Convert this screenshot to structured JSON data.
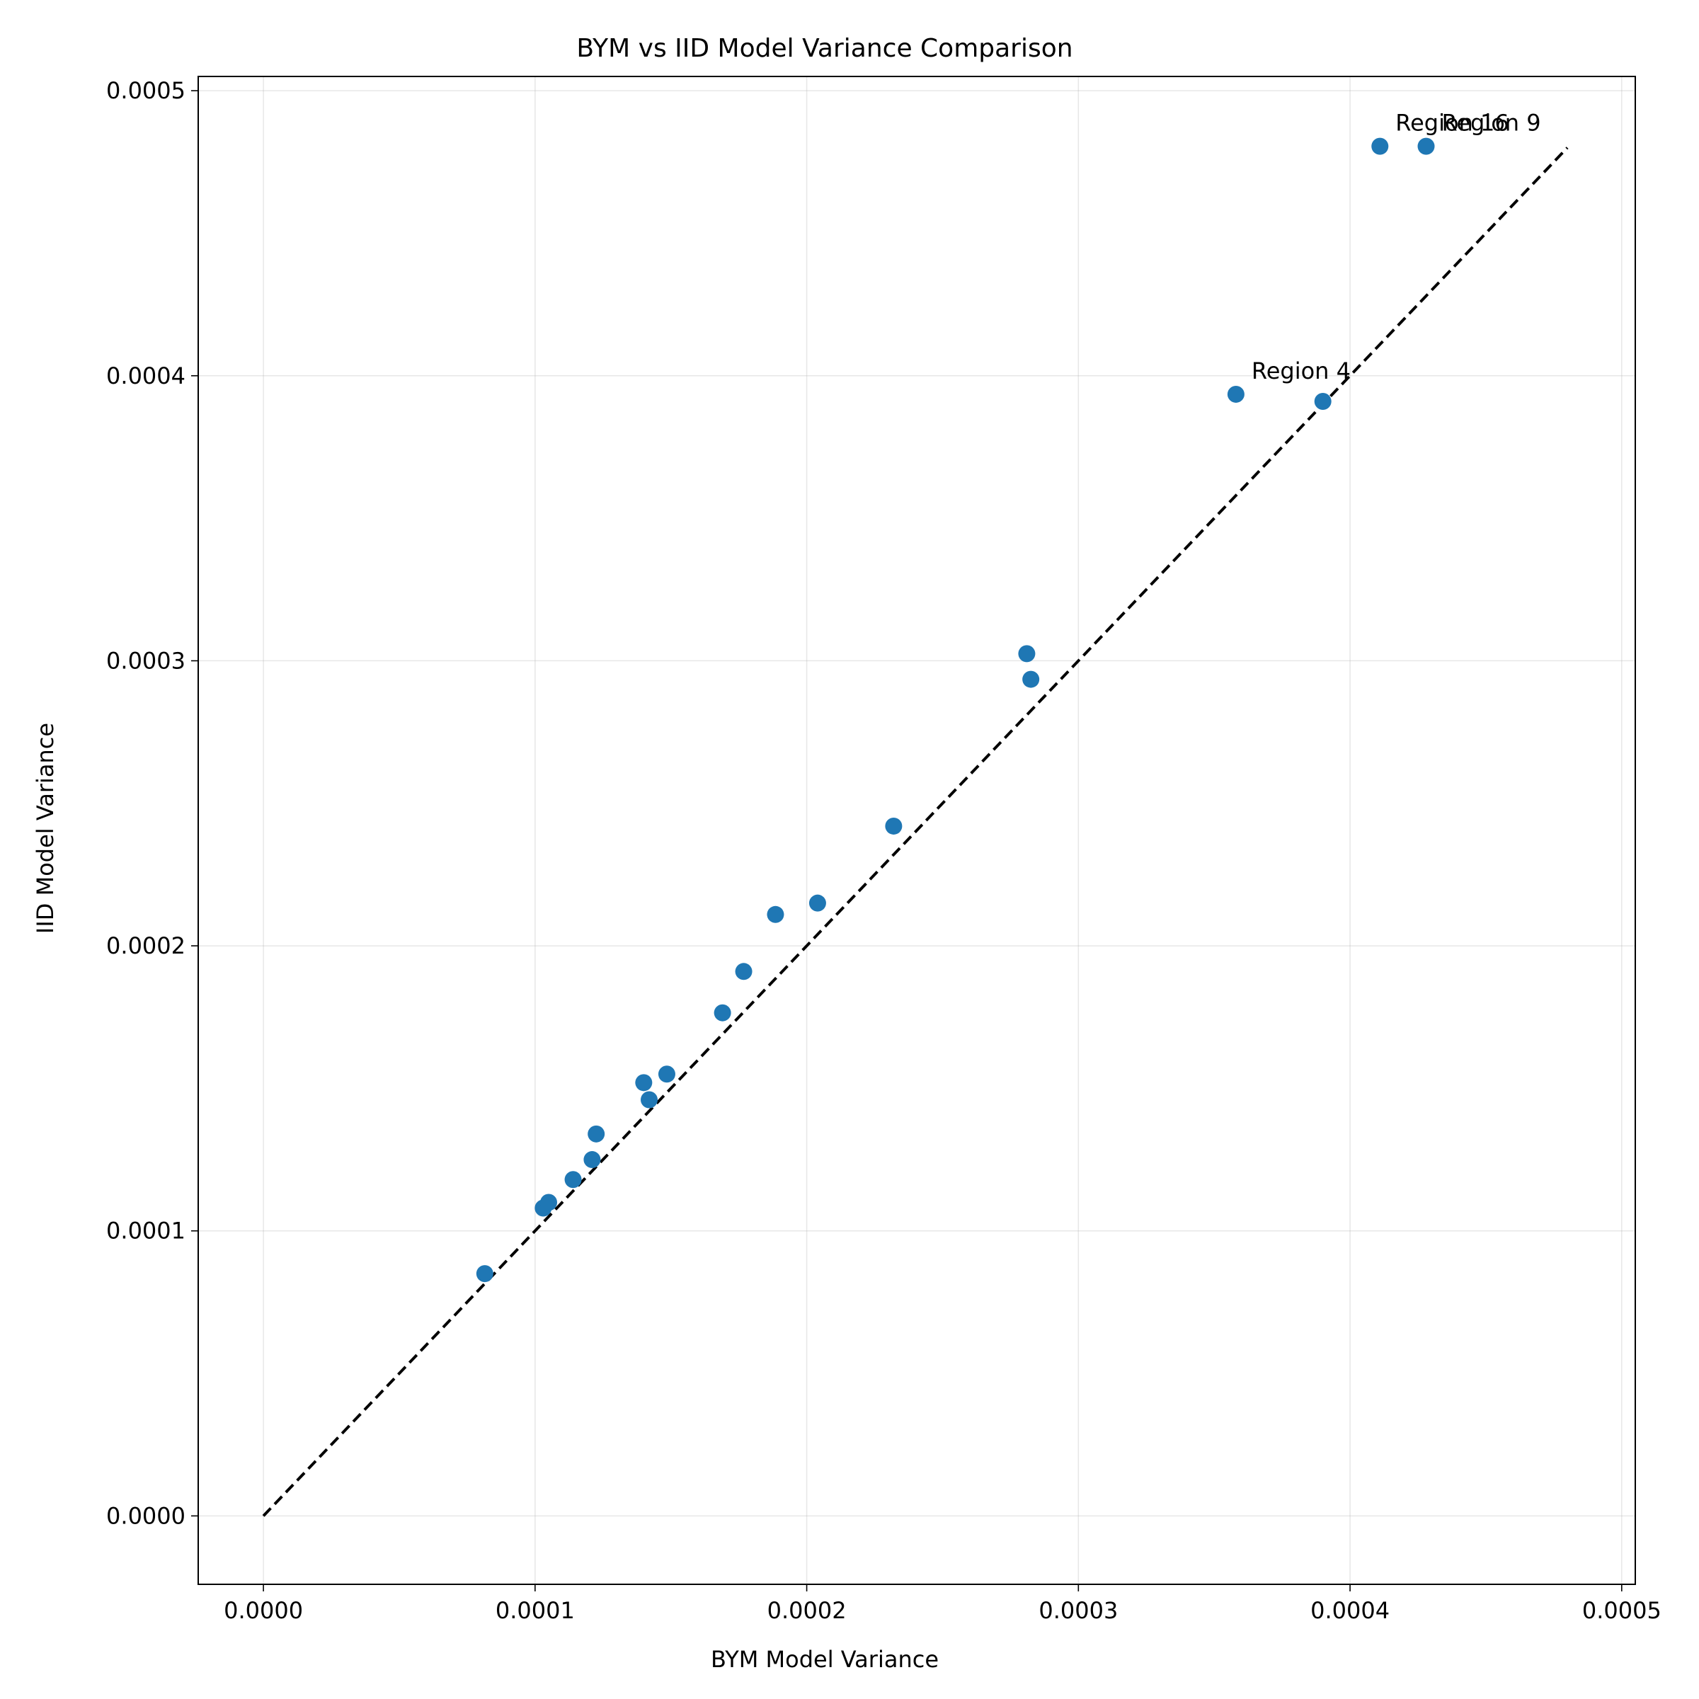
{
  "chart_data": {
    "type": "scatter",
    "title": "BYM vs IID Model Variance Comparison",
    "xlabel": "BYM Model Variance",
    "ylabel": "IID Model Variance",
    "xlim": [
      -2.4e-05,
      0.000505
    ],
    "ylim": [
      -2.4e-05,
      0.000505
    ],
    "x_ticks": [
      0.0,
      0.0001,
      0.0002,
      0.0003,
      0.0004,
      0.0005
    ],
    "x_tick_labels": [
      "0.0000",
      "0.0001",
      "0.0002",
      "0.0003",
      "0.0004",
      "0.0005"
    ],
    "y_ticks": [
      0.0,
      0.0001,
      0.0002,
      0.0003,
      0.0004,
      0.0005
    ],
    "y_tick_labels": [
      "0.0000",
      "0.0001",
      "0.0002",
      "0.0003",
      "0.0004",
      "0.0005"
    ],
    "grid": true,
    "marker_color": "#1f77b4",
    "series": [
      {
        "points": [
          {
            "x": 8.15e-05,
            "y": 8.5e-05
          },
          {
            "x": 0.000103,
            "y": 0.000108
          },
          {
            "x": 0.000105,
            "y": 0.00011
          },
          {
            "x": 0.000114,
            "y": 0.000118
          },
          {
            "x": 0.000121,
            "y": 0.000125
          },
          {
            "x": 0.0001225,
            "y": 0.000134
          },
          {
            "x": 0.00014,
            "y": 0.000152
          },
          {
            "x": 0.000142,
            "y": 0.000146
          },
          {
            "x": 0.0001485,
            "y": 0.000155
          },
          {
            "x": 0.000169,
            "y": 0.0001765
          },
          {
            "x": 0.0001768,
            "y": 0.000191
          },
          {
            "x": 0.0001885,
            "y": 0.000211
          },
          {
            "x": 0.000204,
            "y": 0.000215
          },
          {
            "x": 0.000232,
            "y": 0.000242
          },
          {
            "x": 0.000281,
            "y": 0.0003025
          },
          {
            "x": 0.0002825,
            "y": 0.0002935
          },
          {
            "x": 0.000358,
            "y": 0.0003935
          },
          {
            "x": 0.00039,
            "y": 0.000391
          },
          {
            "x": 0.000411,
            "y": 0.0004805
          },
          {
            "x": 0.000428,
            "y": 0.0004805
          }
        ]
      }
    ],
    "reference_line": {
      "from": [
        0.0,
        0.0
      ],
      "to": [
        0.00048,
        0.00048
      ],
      "style": "dashed",
      "color": "#000000"
    },
    "annotations": [
      {
        "text": "Region 16",
        "x": 0.000411,
        "y": 0.0004805
      },
      {
        "text": "Region 9",
        "x": 0.000428,
        "y": 0.0004805
      },
      {
        "text": "Region 4",
        "x": 0.000358,
        "y": 0.0003935
      }
    ]
  }
}
